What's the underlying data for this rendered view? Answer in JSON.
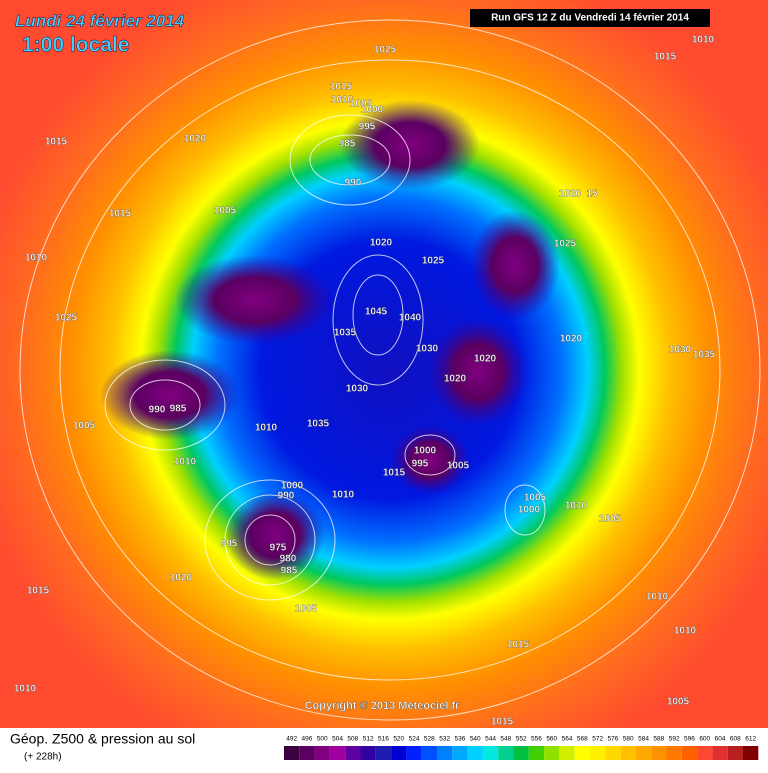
{
  "header": {
    "date": "Lundi 24 février 2014",
    "time": "1:00 locale",
    "run": "Run GFS 12 Z du Vendredi 14 février 2014"
  },
  "map": {
    "pressure_labels": [
      "1010",
      "1015",
      "1025",
      "1015",
      "1010",
      "1005",
      "1000",
      "995",
      "985",
      "990",
      "1020",
      "1015",
      "1005",
      "1015",
      "1010",
      "1020",
      "1025",
      "1020",
      "15",
      "1025",
      "1025",
      "1045",
      "1040",
      "1035",
      "1030",
      "1020",
      "1020",
      "1020",
      "1030",
      "1035",
      "1030",
      "990",
      "985",
      "1005",
      "1010",
      "1035",
      "1000",
      "995",
      "1005",
      "1015",
      "1010",
      "1000",
      "990",
      "1010",
      "1005",
      "1000",
      "1010",
      "1005",
      "995",
      "975",
      "980",
      "985",
      "1020",
      "1015",
      "1005",
      "1010",
      "1015",
      "1010",
      "1010",
      "1005",
      "1015"
    ],
    "copyright": "Copyright © 2013 Meteociel.fr"
  },
  "footer": {
    "title": "Géop. Z500 & pression au sol",
    "lead": "(+ 228h)"
  },
  "legend": {
    "values": [
      492,
      496,
      500,
      504,
      508,
      512,
      516,
      520,
      524,
      528,
      532,
      536,
      540,
      544,
      548,
      552,
      556,
      560,
      564,
      568,
      572,
      576,
      580,
      584,
      588,
      592,
      596,
      600,
      604,
      608,
      612
    ],
    "colors": [
      "#3a0040",
      "#5a0060",
      "#800080",
      "#a000a0",
      "#6000a0",
      "#3000a0",
      "#1c1cb0",
      "#0000d0",
      "#0020ff",
      "#0050ff",
      "#0080ff",
      "#00a8ff",
      "#00d0ff",
      "#00e8e0",
      "#00d090",
      "#00c040",
      "#40d000",
      "#90e000",
      "#d0f000",
      "#ffff00",
      "#fff000",
      "#ffd800",
      "#ffc000",
      "#ffa800",
      "#ff9000",
      "#ff7800",
      "#ff6000",
      "#ff4830",
      "#e03030",
      "#b82020",
      "#800000"
    ]
  }
}
